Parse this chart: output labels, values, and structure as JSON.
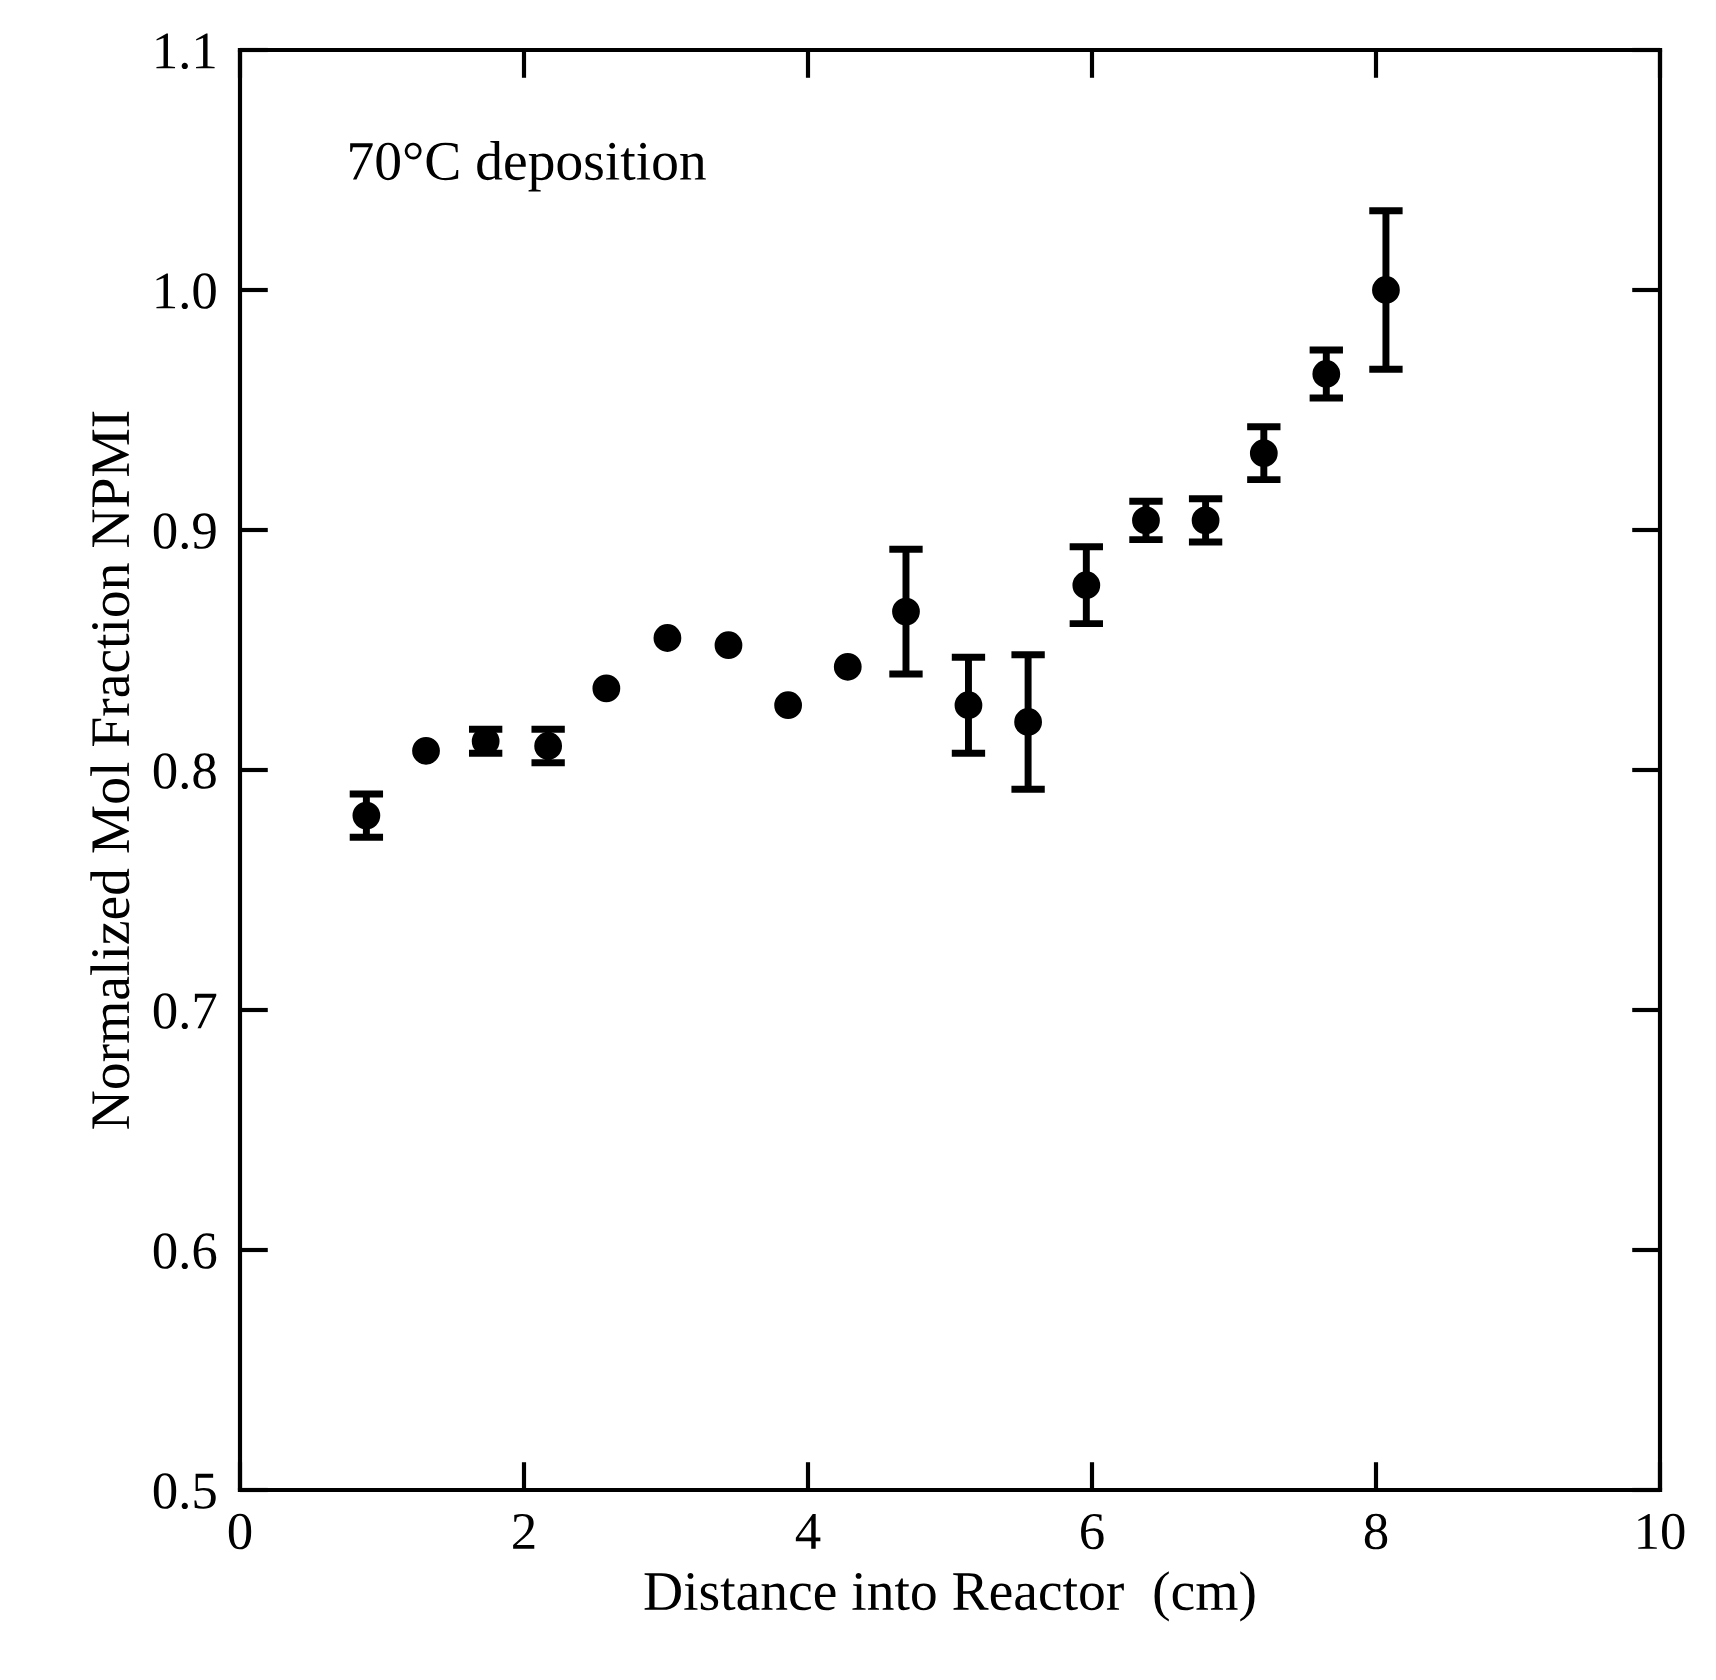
{
  "chart_data": {
    "type": "scatter",
    "xlabel": "Distance into Reactor  (cm)",
    "ylabel": "Normalized Mol Fraction NPMI",
    "annotations": [
      "70°C deposition"
    ],
    "x": [
      0.89,
      1.31,
      1.73,
      2.17,
      2.58,
      3.01,
      3.44,
      3.86,
      4.28,
      4.69,
      5.13,
      5.55,
      5.96,
      6.38,
      6.8,
      7.21,
      7.65,
      8.07
    ],
    "values": [
      0.781,
      0.808,
      0.812,
      0.81,
      0.834,
      0.855,
      0.852,
      0.827,
      0.843,
      0.866,
      0.827,
      0.82,
      0.877,
      0.904,
      0.904,
      0.932,
      0.965,
      1.0
    ],
    "errors": [
      0.009,
      null,
      0.005,
      0.007,
      null,
      null,
      null,
      null,
      null,
      0.026,
      0.02,
      0.028,
      0.016,
      0.008,
      0.009,
      0.011,
      0.01,
      0.033
    ],
    "color": "#000000",
    "marker": "circle",
    "xlim": [
      0,
      10
    ],
    "xticks": [
      0,
      2,
      4,
      6,
      8,
      10
    ],
    "ylim": [
      0.5,
      1.1
    ],
    "yticks": [
      {
        "value": 0.5,
        "label": "0.5"
      },
      {
        "value": 0.6,
        "label": "0.6"
      },
      {
        "value": 0.7,
        "label": "0.7"
      },
      {
        "value": 0.8,
        "label": "0.8"
      },
      {
        "value": 0.9,
        "label": "0.9"
      },
      {
        "value": 1.0,
        "label": "1.0"
      },
      {
        "value": 1.1,
        "label": "1.1"
      }
    ],
    "grid": false
  }
}
